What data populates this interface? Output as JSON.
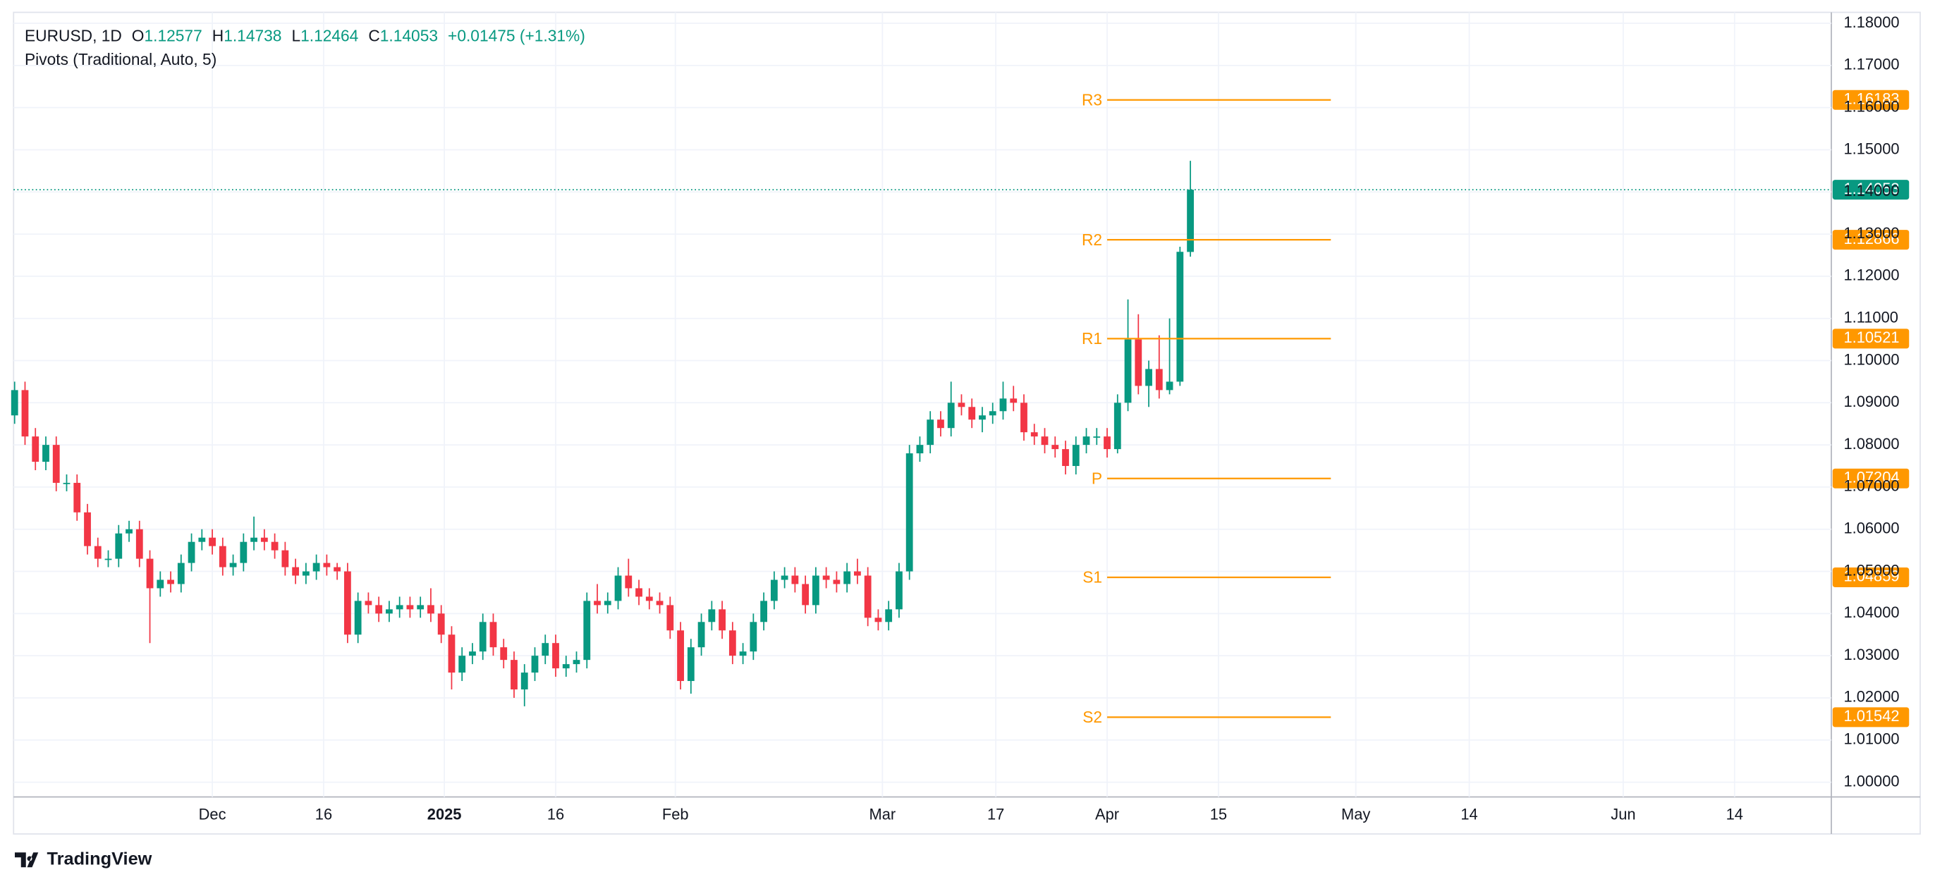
{
  "chart_data": {
    "type": "candlestick",
    "symbol": "EURUSD, 1D",
    "indicator": "Pivots (Traditional, Auto, 5)",
    "ohlc_labels": [
      "O",
      "H",
      "L",
      "C"
    ],
    "change": "+0.01475 (+1.31%)",
    "open": [
      1.087,
      1.093,
      1.082,
      1.076,
      1.08,
      1.071,
      1.071,
      1.064,
      1.056,
      1.053,
      1.053,
      1.059,
      1.06,
      1.053,
      1.046,
      1.048,
      1.047,
      1.052,
      1.057,
      1.058,
      1.056,
      1.051,
      1.052,
      1.057,
      1.058,
      1.057,
      1.055,
      1.051,
      1.049,
      1.05,
      1.052,
      1.051,
      1.05,
      1.035,
      1.043,
      1.042,
      1.04,
      1.041,
      1.042,
      1.041,
      1.042,
      1.04,
      1.035,
      1.026,
      1.03,
      1.031,
      1.038,
      1.032,
      1.029,
      1.022,
      1.026,
      1.03,
      1.033,
      1.027,
      1.028,
      1.029,
      1.043,
      1.042,
      1.043,
      1.049,
      1.046,
      1.044,
      1.043,
      1.042,
      1.036,
      1.024,
      1.032,
      1.038,
      1.041,
      1.036,
      1.03,
      1.031,
      1.038,
      1.043,
      1.048,
      1.049,
      1.047,
      1.042,
      1.049,
      1.048,
      1.047,
      1.05,
      1.049,
      1.039,
      1.038,
      1.041,
      1.05,
      1.078,
      1.08,
      1.086,
      1.084,
      1.09,
      1.089,
      1.086,
      1.087,
      1.088,
      1.091,
      1.09,
      1.083,
      1.082,
      1.08,
      1.079,
      1.075,
      1.08,
      1.082,
      1.082,
      1.079,
      1.09,
      1.105,
      1.094,
      1.098,
      1.093,
      1.095,
      1.12577
    ],
    "high": [
      1.095,
      1.095,
      1.084,
      1.082,
      1.082,
      1.073,
      1.073,
      1.066,
      1.058,
      1.055,
      1.061,
      1.062,
      1.062,
      1.055,
      1.05,
      1.05,
      1.054,
      1.059,
      1.06,
      1.06,
      1.058,
      1.054,
      1.059,
      1.063,
      1.06,
      1.059,
      1.057,
      1.053,
      1.052,
      1.054,
      1.054,
      1.052,
      1.052,
      1.045,
      1.045,
      1.044,
      1.043,
      1.044,
      1.044,
      1.044,
      1.046,
      1.042,
      1.037,
      1.032,
      1.033,
      1.04,
      1.04,
      1.034,
      1.031,
      1.028,
      1.032,
      1.035,
      1.035,
      1.03,
      1.031,
      1.045,
      1.047,
      1.045,
      1.051,
      1.053,
      1.048,
      1.046,
      1.045,
      1.044,
      1.038,
      1.034,
      1.04,
      1.043,
      1.043,
      1.038,
      1.033,
      1.04,
      1.045,
      1.05,
      1.051,
      1.051,
      1.049,
      1.051,
      1.051,
      1.05,
      1.052,
      1.053,
      1.051,
      1.041,
      1.043,
      1.052,
      1.08,
      1.082,
      1.088,
      1.088,
      1.095,
      1.092,
      1.091,
      1.089,
      1.09,
      1.095,
      1.094,
      1.092,
      1.085,
      1.084,
      1.082,
      1.081,
      1.082,
      1.084,
      1.084,
      1.084,
      1.092,
      1.1145,
      1.111,
      1.1,
      1.106,
      1.11,
      1.127,
      1.14738
    ],
    "low": [
      1.085,
      1.08,
      1.074,
      1.074,
      1.069,
      1.069,
      1.062,
      1.054,
      1.051,
      1.051,
      1.051,
      1.057,
      1.051,
      1.033,
      1.044,
      1.045,
      1.045,
      1.05,
      1.055,
      1.054,
      1.049,
      1.049,
      1.05,
      1.055,
      1.055,
      1.053,
      1.049,
      1.047,
      1.047,
      1.048,
      1.049,
      1.048,
      1.033,
      1.033,
      1.04,
      1.038,
      1.038,
      1.039,
      1.039,
      1.039,
      1.038,
      1.033,
      1.022,
      1.024,
      1.028,
      1.029,
      1.03,
      1.027,
      1.02,
      1.018,
      1.024,
      1.028,
      1.025,
      1.025,
      1.026,
      1.027,
      1.04,
      1.04,
      1.041,
      1.044,
      1.042,
      1.041,
      1.04,
      1.034,
      1.022,
      1.021,
      1.03,
      1.036,
      1.034,
      1.028,
      1.028,
      1.029,
      1.036,
      1.041,
      1.046,
      1.045,
      1.04,
      1.04,
      1.046,
      1.045,
      1.045,
      1.047,
      1.037,
      1.036,
      1.036,
      1.039,
      1.048,
      1.076,
      1.078,
      1.082,
      1.082,
      1.087,
      1.084,
      1.083,
      1.085,
      1.086,
      1.088,
      1.081,
      1.08,
      1.078,
      1.077,
      1.073,
      1.073,
      1.078,
      1.08,
      1.077,
      1.078,
      1.088,
      1.092,
      1.089,
      1.091,
      1.092,
      1.094,
      1.12464
    ],
    "close": [
      1.093,
      1.082,
      1.076,
      1.08,
      1.071,
      1.071,
      1.064,
      1.056,
      1.053,
      1.053,
      1.059,
      1.06,
      1.053,
      1.046,
      1.048,
      1.047,
      1.052,
      1.057,
      1.058,
      1.056,
      1.051,
      1.052,
      1.057,
      1.058,
      1.057,
      1.055,
      1.051,
      1.049,
      1.05,
      1.052,
      1.051,
      1.05,
      1.035,
      1.043,
      1.042,
      1.04,
      1.041,
      1.042,
      1.041,
      1.042,
      1.04,
      1.035,
      1.026,
      1.03,
      1.031,
      1.038,
      1.032,
      1.029,
      1.022,
      1.026,
      1.03,
      1.033,
      1.027,
      1.028,
      1.029,
      1.043,
      1.042,
      1.043,
      1.049,
      1.046,
      1.044,
      1.043,
      1.042,
      1.036,
      1.024,
      1.032,
      1.038,
      1.041,
      1.036,
      1.03,
      1.031,
      1.038,
      1.043,
      1.048,
      1.049,
      1.047,
      1.042,
      1.049,
      1.048,
      1.047,
      1.05,
      1.049,
      1.039,
      1.038,
      1.041,
      1.05,
      1.078,
      1.08,
      1.086,
      1.084,
      1.09,
      1.089,
      1.086,
      1.087,
      1.088,
      1.091,
      1.09,
      1.083,
      1.082,
      1.08,
      1.079,
      1.075,
      1.08,
      1.082,
      1.082,
      1.079,
      1.09,
      1.105,
      1.094,
      1.098,
      1.093,
      1.095,
      1.1258,
      1.14053
    ],
    "up_color": "#089981",
    "down_color": "#f23645",
    "xlim": [
      -0.1,
      174.6
    ],
    "xticks": [
      {
        "value": 19,
        "label": "Dec"
      },
      {
        "value": 29.7,
        "label": "16"
      },
      {
        "value": 41.3,
        "label": "2025"
      },
      {
        "value": 52,
        "label": "16"
      },
      {
        "value": 63.5,
        "label": "Feb"
      },
      {
        "value": 83.4,
        "label": "Mar"
      },
      {
        "value": 94.3,
        "label": "17"
      },
      {
        "value": 105,
        "label": "Apr"
      },
      {
        "value": 115.7,
        "label": "15"
      },
      {
        "value": 128.9,
        "label": "May"
      },
      {
        "value": 139.8,
        "label": "14"
      },
      {
        "value": 154.6,
        "label": "Jun"
      },
      {
        "value": 165.3,
        "label": "14"
      }
    ],
    "ylim": [
      0.9965,
      1.1826
    ],
    "yticks": [
      {
        "value": 1,
        "label": "1.00000"
      },
      {
        "value": 1.01,
        "label": "1.01000"
      },
      {
        "value": 1.02,
        "label": "1.02000"
      },
      {
        "value": 1.03,
        "label": "1.03000"
      },
      {
        "value": 1.04,
        "label": "1.04000"
      },
      {
        "value": 1.05,
        "label": "1.05000"
      },
      {
        "value": 1.06,
        "label": "1.06000"
      },
      {
        "value": 1.07,
        "label": "1.07000"
      },
      {
        "value": 1.08,
        "label": "1.08000"
      },
      {
        "value": 1.09,
        "label": "1.09000"
      },
      {
        "value": 1.1,
        "label": "1.10000"
      },
      {
        "value": 1.11,
        "label": "1.11000"
      },
      {
        "value": 1.12,
        "label": "1.12000"
      },
      {
        "value": 1.13,
        "label": "1.13000"
      },
      {
        "value": 1.14,
        "label": "1.14000"
      },
      {
        "value": 1.15,
        "label": "1.15000"
      },
      {
        "value": 1.16,
        "label": "1.16000"
      },
      {
        "value": 1.17,
        "label": "1.17000"
      },
      {
        "value": 1.18,
        "label": "1.18000"
      }
    ],
    "grid": true,
    "pivots": [
      {
        "name": "R3",
        "value": 1.16183
      },
      {
        "name": "R2",
        "value": 1.12866
      },
      {
        "name": "R1",
        "value": 1.10521
      },
      {
        "name": "P",
        "value": 1.07204
      },
      {
        "name": "S1",
        "value": 1.04859
      },
      {
        "name": "S2",
        "value": 1.01542
      }
    ],
    "pivot_color": "#ff9800",
    "pivot_range": [
      105,
      126.5
    ]
  },
  "footer": {
    "brand": "TradingView"
  }
}
